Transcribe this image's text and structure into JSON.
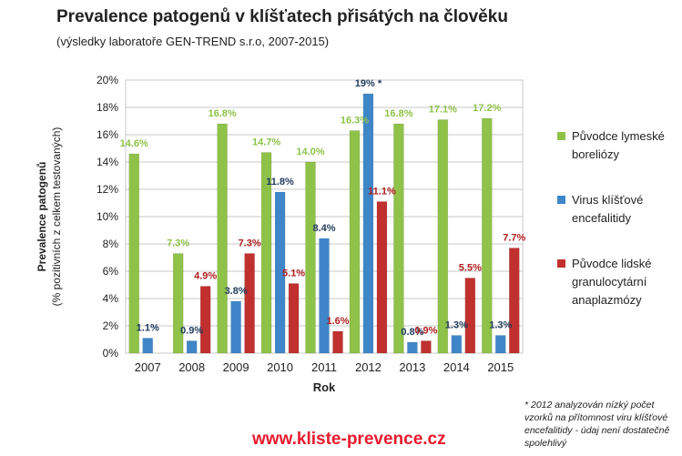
{
  "header": {
    "title": "Prevalence patogenů v klíšťatech přisátých na člověku",
    "subtitle": "(výsledky laboratoře GEN-TREND s.r.o, 2007-2015)"
  },
  "chart_data": {
    "type": "bar",
    "title": "Prevalence patogenů v klíšťatech přisátých na člověku",
    "subtitle": "(výsledky laboratoře GEN-TREND s.r.o, 2007-2015)",
    "xlabel": "Rok",
    "ylabel": "Prevalence patogenů",
    "ylabel_sub": "(% pozitivních z celkem testovaných)",
    "categories": [
      "2007",
      "2008",
      "2009",
      "2010",
      "2011",
      "2012",
      "2013",
      "2014",
      "2015"
    ],
    "ylim": [
      0,
      20
    ],
    "yticks": [
      0,
      2,
      4,
      6,
      8,
      10,
      12,
      14,
      16,
      18,
      20
    ],
    "ytick_labels": [
      "0%",
      "2%",
      "4%",
      "6%",
      "8%",
      "10%",
      "12%",
      "14%",
      "16%",
      "18%",
      "20%"
    ],
    "grid": true,
    "legend_position": "right",
    "series": [
      {
        "name": "Původce lymeské boreliózy",
        "color": "#8fc249",
        "label_color": "#8fc249",
        "values": [
          14.6,
          7.3,
          16.8,
          14.7,
          14.0,
          16.3,
          16.8,
          17.1,
          17.2
        ],
        "labels": [
          "14.6%",
          "7.3%",
          "16.8%",
          "14.7%",
          "14.0%",
          "16.3%",
          "16.8%",
          "17.1%",
          "17.2%"
        ]
      },
      {
        "name": "Virus klíšťové encefalitidy",
        "color": "#3f86c8",
        "label_color": "#1f3a5c",
        "values": [
          1.1,
          0.9,
          3.8,
          11.8,
          8.4,
          19.0,
          0.8,
          1.3,
          1.3
        ],
        "labels": [
          "1.1%",
          "0.9%",
          "3.8%",
          "11.8%",
          "8.4%",
          "19% *",
          "0.8%",
          "1.3%",
          "1.3%"
        ]
      },
      {
        "name": "Původce lidské granulocytární anaplazmózy",
        "color": "#c0302e",
        "label_color": "#b01e1e",
        "values": [
          null,
          4.9,
          7.3,
          5.1,
          1.6,
          11.1,
          0.9,
          5.5,
          7.7
        ],
        "labels": [
          "",
          "4.9%",
          "7.3%",
          "5.1%",
          "1.6%",
          "11.1%",
          "0.9%",
          "5.5%",
          "7.7%"
        ]
      }
    ]
  },
  "legend": {
    "items": [
      {
        "label": "Původce lymeské boreliózy",
        "color": "#8fc249"
      },
      {
        "label": "Virus klíšťové encefalitidy",
        "color": "#3f86c8"
      },
      {
        "label": "Původce lidské granulocytární anaplazmózy",
        "color": "#c0302e"
      }
    ]
  },
  "footnote": "* 2012 analyzován nízký počet vzorků na přítomnost viru klíšťové encefalitidy - údaj není dostatečně spolehlivý",
  "website": "www.kliste-prevence.cz"
}
